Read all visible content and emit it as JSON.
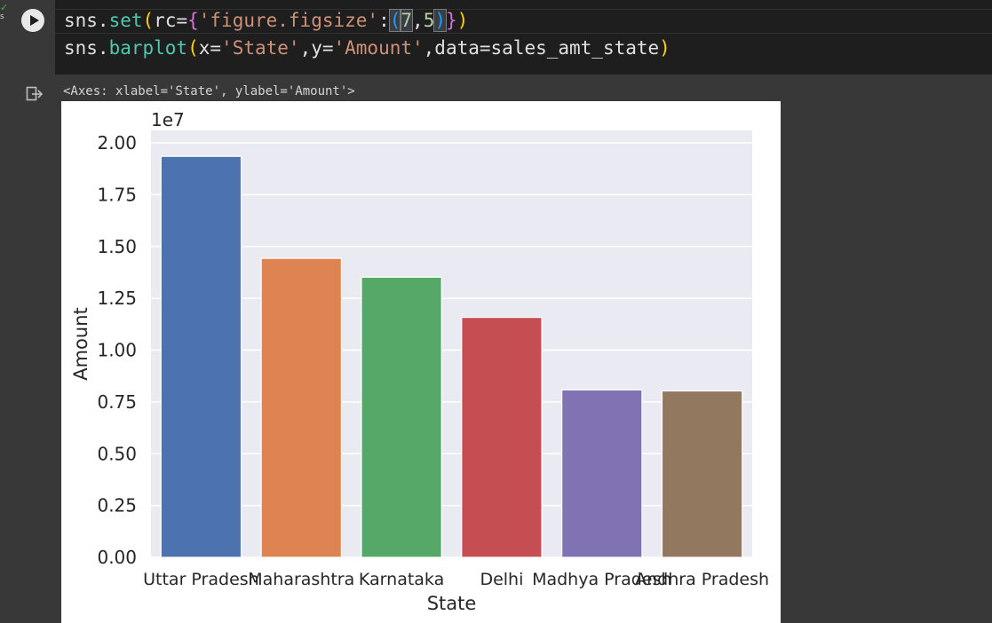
{
  "cell": {
    "status_text": "s",
    "code_lines": [
      [
        {
          "t": "sns.",
          "c": "default"
        },
        {
          "t": "set",
          "c": "fn"
        },
        {
          "t": "(",
          "c": "b1"
        },
        {
          "t": "rc=",
          "c": "default"
        },
        {
          "t": "{",
          "c": "b2"
        },
        {
          "t": "'figure.figsize'",
          "c": "str"
        },
        {
          "t": ":",
          "c": "default"
        },
        {
          "t": "(",
          "c": "b3",
          "box": true
        },
        {
          "t": "7",
          "c": "num",
          "box": true
        },
        {
          "t": ",",
          "c": "default"
        },
        {
          "t": "5",
          "c": "num"
        },
        {
          "t": ")",
          "c": "b3",
          "box": true
        },
        {
          "t": "}",
          "c": "b2"
        },
        {
          "t": ")",
          "c": "b1"
        }
      ],
      [
        {
          "t": "sns.",
          "c": "default"
        },
        {
          "t": "barplot",
          "c": "fn"
        },
        {
          "t": "(",
          "c": "b1"
        },
        {
          "t": "x=",
          "c": "default"
        },
        {
          "t": "'State'",
          "c": "str"
        },
        {
          "t": ",y=",
          "c": "default"
        },
        {
          "t": "'Amount'",
          "c": "str"
        },
        {
          "t": ",data=sales_amt_state",
          "c": "default"
        },
        {
          "t": ")",
          "c": "b1"
        }
      ]
    ],
    "token_colors": {
      "default": "#e0e0e0",
      "fn": "#4ec9b0",
      "str": "#ce9178",
      "num": "#b5cea8",
      "b1": "#ffd700",
      "b2": "#da70d6",
      "b3": "#179fff"
    }
  },
  "output": {
    "text": "<Axes: xlabel='State', ylabel='Amount'>"
  },
  "chart_data": {
    "type": "bar",
    "categories": [
      "Uttar Pradesh",
      "Maharashtra",
      "Karnataka",
      "Delhi",
      "Madhya Pradesh",
      "Andhra Pradesh"
    ],
    "values": [
      19350000,
      14430000,
      13520000,
      11580000,
      8080000,
      8030000
    ],
    "colors": [
      "#4c72b0",
      "#dd8452",
      "#55a868",
      "#c44e52",
      "#8172b3",
      "#937860"
    ],
    "xlabel": "State",
    "ylabel": "Amount",
    "ylim": [
      0,
      20600000
    ],
    "offset_text": "1e7",
    "yticks": [
      0,
      2500000,
      5000000,
      7500000,
      10000000,
      12500000,
      15000000,
      17500000,
      20000000
    ],
    "ytick_labels": [
      "0.00",
      "0.25",
      "0.50",
      "0.75",
      "1.00",
      "1.25",
      "1.50",
      "1.75",
      "2.00"
    ],
    "grid": true,
    "axes_facecolor": "#eaeaf2"
  }
}
